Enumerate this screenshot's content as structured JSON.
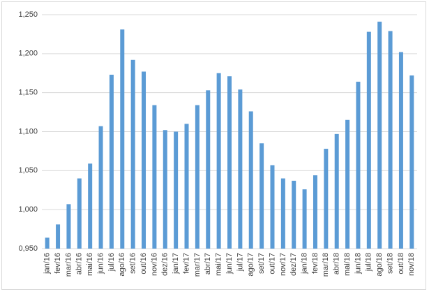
{
  "chart_data": {
    "type": "bar",
    "categories": [
      "jan/16",
      "fev/16",
      "mar/16",
      "abr/16",
      "mai/16",
      "jun/16",
      "jul/16",
      "ago/16",
      "set/16",
      "out/16",
      "nov/16",
      "dez/16",
      "jan/17",
      "fev/17",
      "mar/17",
      "abr/17",
      "mai/17",
      "jun/17",
      "jul/17",
      "ago/17",
      "set/17",
      "out/17",
      "nov/17",
      "dez/17",
      "jan/18",
      "fev/18",
      "mar/18",
      "abr/18",
      "mai/18",
      "jun/18",
      "jul/18",
      "ago/18",
      "set/18",
      "out/18",
      "nov/18"
    ],
    "values": [
      0.964,
      0.981,
      1.007,
      1.04,
      1.059,
      1.107,
      1.173,
      1.231,
      1.192,
      1.177,
      1.134,
      1.102,
      1.1,
      1.11,
      1.134,
      1.153,
      1.175,
      1.171,
      1.154,
      1.126,
      1.085,
      1.057,
      1.04,
      1.037,
      1.026,
      1.044,
      1.078,
      1.097,
      1.115,
      1.164,
      1.228,
      1.241,
      1.229,
      1.202,
      1.172
    ],
    "color": "#5b9bd5",
    "ylim": [
      0.95,
      1.25
    ],
    "yticks": [
      {
        "value": 0.95,
        "label": "0,950"
      },
      {
        "value": 1.0,
        "label": "1,000"
      },
      {
        "value": 1.05,
        "label": "1,050"
      },
      {
        "value": 1.1,
        "label": "1,100"
      },
      {
        "value": 1.15,
        "label": "1,150"
      },
      {
        "value": 1.2,
        "label": "1,200"
      },
      {
        "value": 1.25,
        "label": "1,250"
      }
    ],
    "grid": true
  }
}
